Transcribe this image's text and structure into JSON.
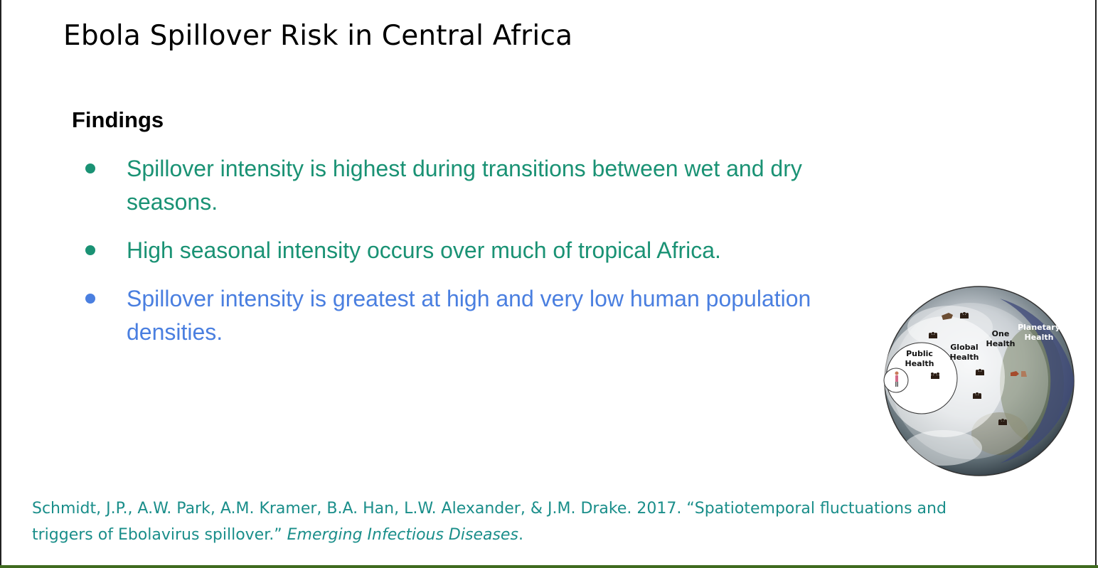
{
  "slide": {
    "title": "Ebola Spillover Risk in Central Africa",
    "heading": "Findings",
    "bullets": [
      {
        "text": "Spillover intensity is highest during transitions between wet and dry seasons.",
        "color": "#1a9274"
      },
      {
        "text": "High seasonal intensity occurs over much of tropical Africa.",
        "color": "#1a9274"
      },
      {
        "text": "Spillover intensity is greatest at high and very low human population densities.",
        "color": "#4a7fe0"
      }
    ],
    "citation": {
      "authors_title": "Schmidt, J.P., A.W. Park, A.M. Kramer, B.A. Han, L.W. Alexander, & J.M. Drake. 2017. “Spatiotemporal fluctuations and triggers of Ebolavirus spillover.” ",
      "journal": "Emerging Infectious Diseases",
      "trailing": ".",
      "color": "#1a8e8a"
    }
  },
  "globe_figure": {
    "labels": {
      "public_health": [
        "Public",
        "Health"
      ],
      "global_health": [
        "Global",
        "Health"
      ],
      "one_health": [
        "One",
        "Health"
      ],
      "planetary_health": [
        "Planetary",
        "Health"
      ]
    }
  }
}
